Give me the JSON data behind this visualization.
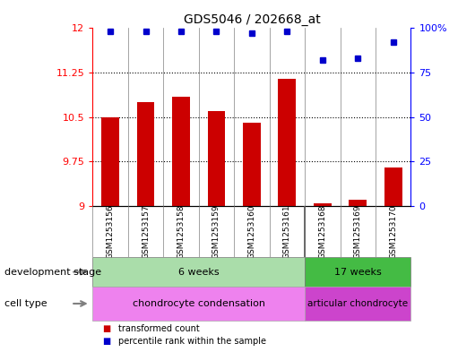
{
  "title": "GDS5046 / 202668_at",
  "samples": [
    "GSM1253156",
    "GSM1253157",
    "GSM1253158",
    "GSM1253159",
    "GSM1253160",
    "GSM1253161",
    "GSM1253168",
    "GSM1253169",
    "GSM1253170"
  ],
  "transformed_counts": [
    10.5,
    10.75,
    10.85,
    10.6,
    10.4,
    11.15,
    9.05,
    9.1,
    9.65
  ],
  "percentile_ranks": [
    98,
    98,
    98,
    98,
    97,
    98,
    82,
    83,
    92
  ],
  "ylim_left": [
    9,
    12
  ],
  "ylim_right": [
    0,
    100
  ],
  "yticks_left": [
    9,
    9.75,
    10.5,
    11.25,
    12
  ],
  "yticks_right": [
    0,
    25,
    50,
    75,
    100
  ],
  "ytick_labels_left": [
    "9",
    "9.75",
    "10.5",
    "11.25",
    "12"
  ],
  "ytick_labels_right": [
    "0",
    "25",
    "50",
    "75",
    "100%"
  ],
  "bar_color": "#cc0000",
  "dot_color": "#0000cc",
  "bar_width": 0.5,
  "dev_stage_groups": [
    {
      "label": "6 weeks",
      "start": 0,
      "end": 6,
      "color": "#aaddaa"
    },
    {
      "label": "17 weeks",
      "start": 6,
      "end": 9,
      "color": "#44bb44"
    }
  ],
  "cell_type_groups": [
    {
      "label": "chondrocyte condensation",
      "start": 0,
      "end": 6,
      "color": "#ee82ee"
    },
    {
      "label": "articular chondrocyte",
      "start": 6,
      "end": 9,
      "color": "#cc44cc"
    }
  ],
  "legend_items": [
    {
      "label": "transformed count",
      "color": "#cc0000"
    },
    {
      "label": "percentile rank within the sample",
      "color": "#0000cc"
    }
  ],
  "dev_stage_label": "development stage",
  "cell_type_label": "cell type",
  "background_color": "#ffffff"
}
